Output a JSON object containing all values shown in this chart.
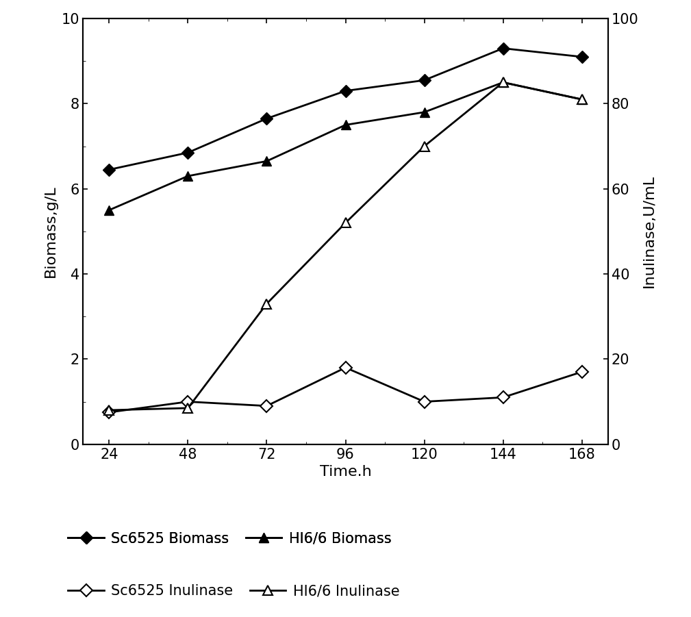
{
  "time": [
    24,
    48,
    72,
    96,
    120,
    144,
    168
  ],
  "sc6525_biomass": [
    6.45,
    6.85,
    7.65,
    8.3,
    8.55,
    9.3,
    9.1
  ],
  "hi66_biomass": [
    5.5,
    6.3,
    6.65,
    7.5,
    7.8,
    8.5,
    8.1
  ],
  "sc6525_inulinase": [
    7.5,
    10.0,
    9.0,
    18.0,
    10.0,
    11.0,
    17.0
  ],
  "hi66_inulinase": [
    8.0,
    8.5,
    33.0,
    52.0,
    70.0,
    85.0,
    81.0
  ],
  "left_ylabel": "Biomass,g/L",
  "right_ylabel": "Inulinase,U/mL",
  "xlabel": "Time.h",
  "ylim_left": [
    0,
    10
  ],
  "ylim_right": [
    0,
    100
  ],
  "yticks_left": [
    0,
    2,
    4,
    6,
    8,
    10
  ],
  "yticks_right": [
    0,
    20,
    40,
    60,
    80,
    100
  ],
  "xticks": [
    24,
    48,
    72,
    96,
    120,
    144,
    168
  ],
  "legend_labels": [
    "Sc6525 Biomass",
    "HI6/6 Biomass",
    "Sc6525 Inulinase",
    "HI6/6 Inulinase"
  ],
  "line_color": "#000000",
  "background_color": "#ffffff",
  "label_fontsize": 16,
  "tick_fontsize": 15,
  "legend_fontsize": 15
}
